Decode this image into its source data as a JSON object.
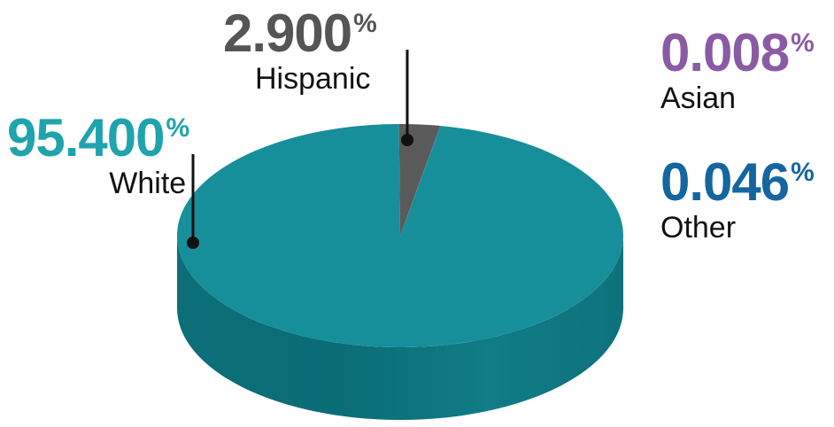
{
  "chart_data": {
    "type": "pie",
    "style": "3d",
    "slices": [
      {
        "label": "White",
        "value": 95.4,
        "display": "95.400",
        "color": "#178f9a",
        "label_color": "#1fa3ad"
      },
      {
        "label": "Hispanic",
        "value": 2.9,
        "display": "2.900",
        "color": "#5a5a5a",
        "label_color": "#555555"
      },
      {
        "label": "Asian",
        "value": 0.008,
        "display": "0.008",
        "color": "#8a5ba5",
        "label_color": "#8a5ba5"
      },
      {
        "label": "Other",
        "value": 0.046,
        "display": "0.046",
        "color": "#1565a0",
        "label_color": "#1565a0"
      }
    ],
    "unit": "%"
  }
}
